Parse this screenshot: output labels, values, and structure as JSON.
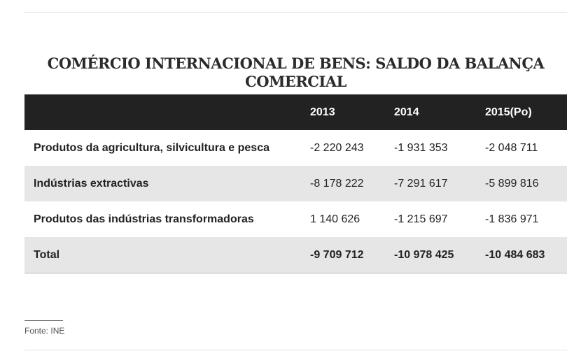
{
  "title": "COMÉRCIO INTERNACIONAL DE BENS: SALDO DA BALANÇA COMERCIAL",
  "table": {
    "headers": [
      "",
      "2013",
      "2014",
      "2015(Po)"
    ],
    "rows": [
      {
        "label": "Produtos da agricultura, silvicultura e pesca",
        "values": [
          "-2 220 243",
          "-1 931 353",
          "-2 048 711"
        ]
      },
      {
        "label": "Indústrias extractivas",
        "values": [
          "-8 178 222",
          "-7 291 617",
          "-5 899 816"
        ]
      },
      {
        "label": "Produtos das indústrias transformadoras",
        "values": [
          "1 140 626",
          "-1 215 697",
          "-1 836 971"
        ]
      },
      {
        "label": "Total",
        "values": [
          "-9 709 712",
          "-10 978 425",
          "-10 484 683"
        ]
      }
    ]
  },
  "source": "Fonte: INE"
}
